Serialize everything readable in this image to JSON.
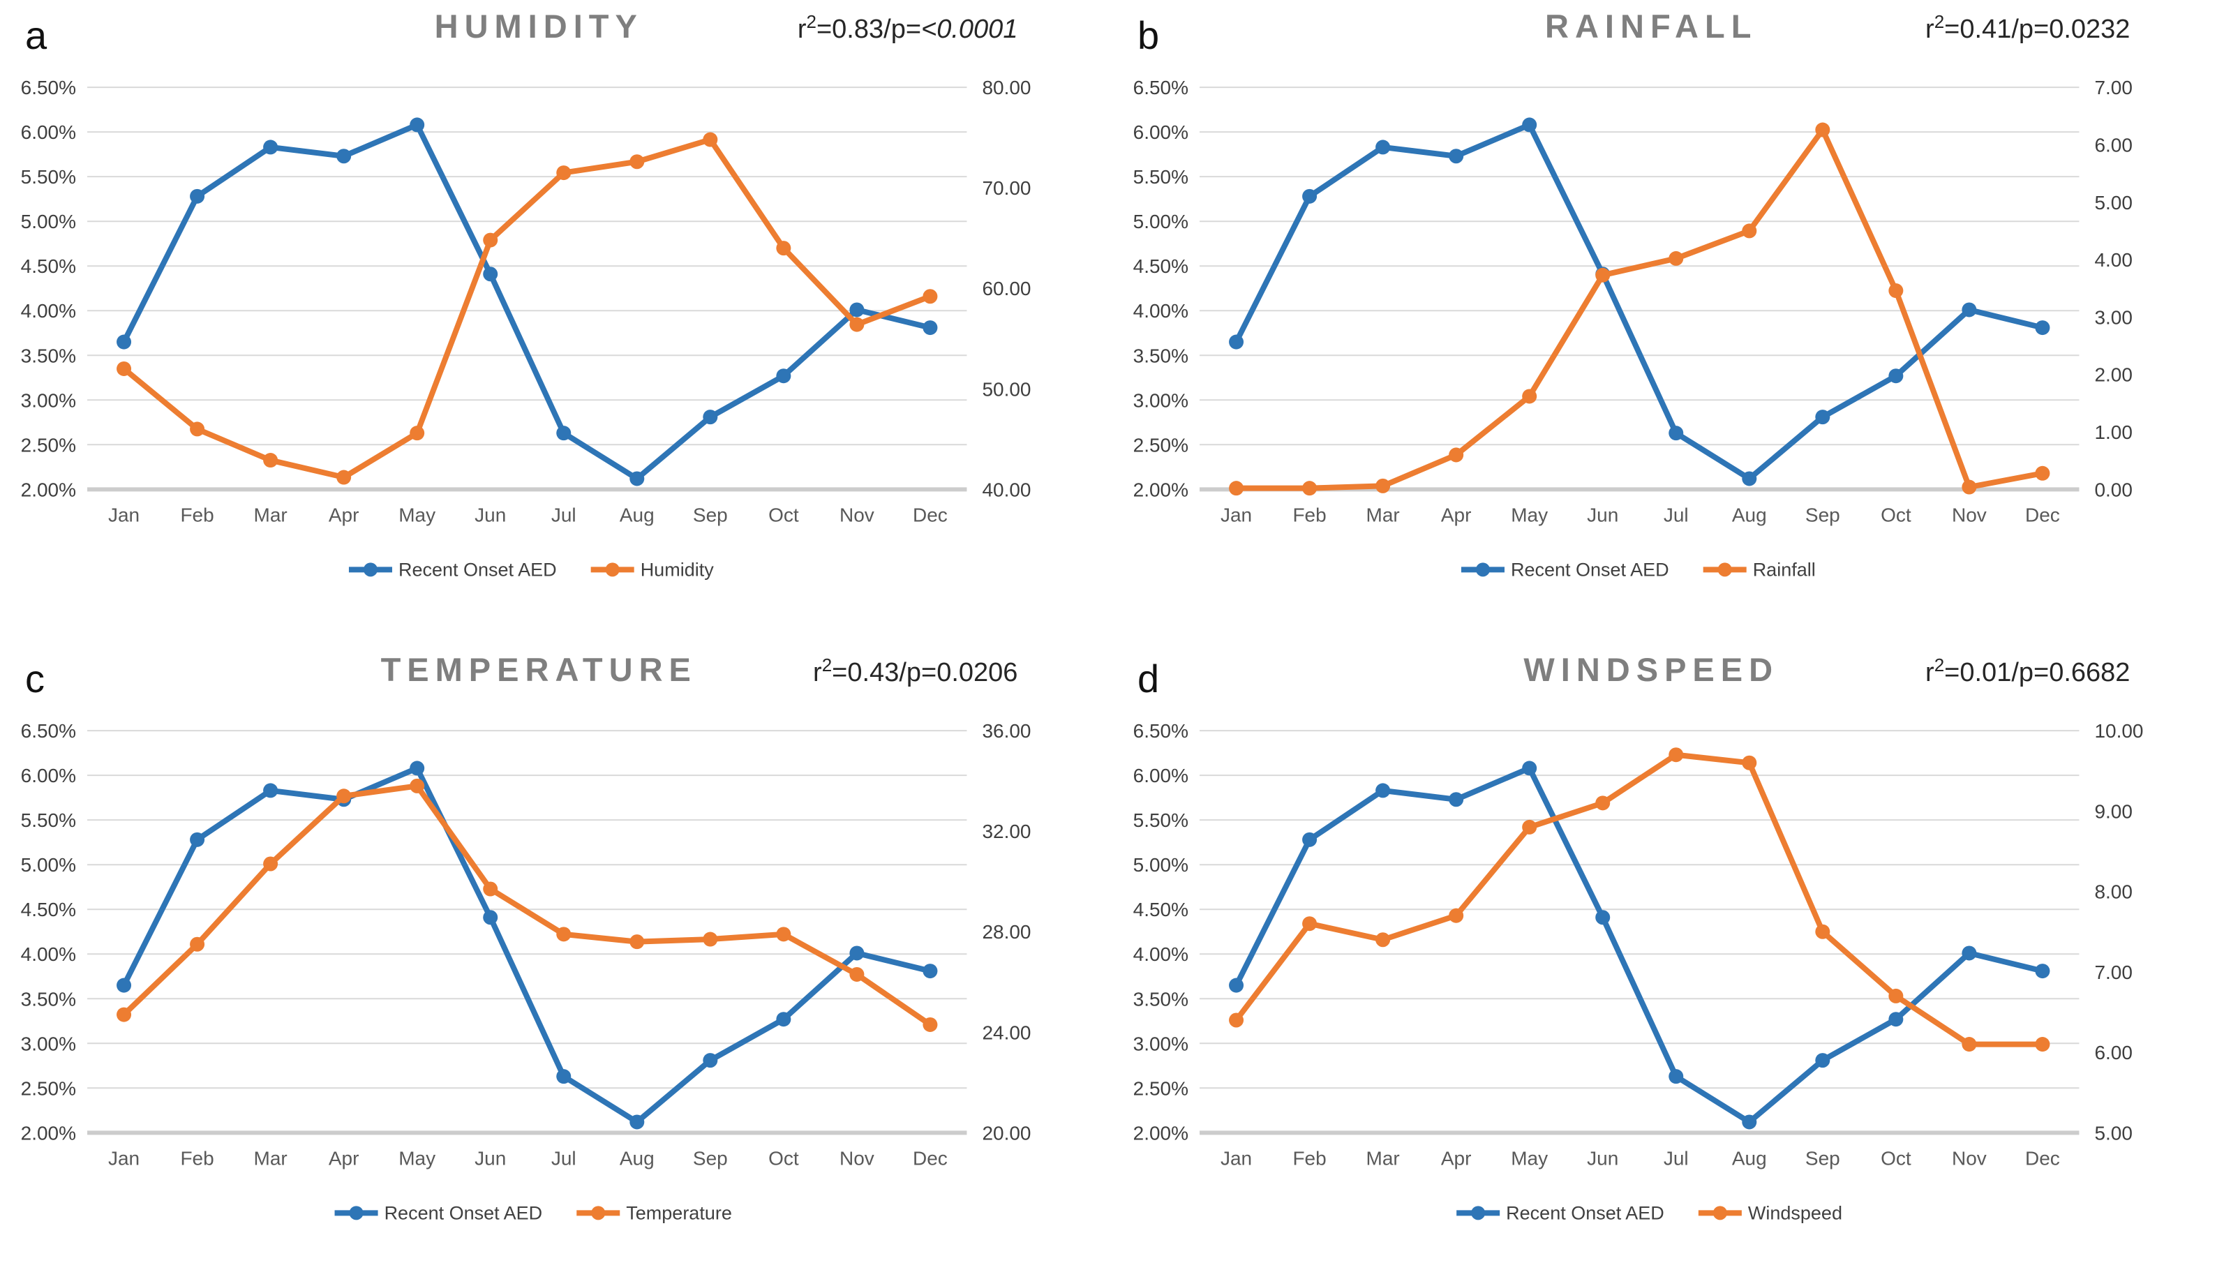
{
  "figure": {
    "background": "#FFFFFF",
    "description_visible_text_only": true
  },
  "colors": {
    "aed_line": "#2E75B6",
    "weather_line": "#ED7D31",
    "gridline": "#D9D9D9",
    "axis_line": "#CCCCCC",
    "title_text": "#7F7F7F",
    "stat_text": "#262626",
    "left_tick_text": "#3F3F3F",
    "right_tick_text": "#3F3F3F",
    "month_text": "#595959",
    "panel_letter_text": "#111111",
    "legend_text": "#404040",
    "background": "#FFFFFF"
  },
  "shared": {
    "months": [
      "Jan",
      "Feb",
      "Mar",
      "Apr",
      "May",
      "Jun",
      "Jul",
      "Aug",
      "Sep",
      "Oct",
      "Nov",
      "Dec"
    ],
    "aed_series_name": "Recent Onset AED",
    "left_axis": {
      "min": 2.0,
      "max": 6.5,
      "step": 0.5,
      "tick_values": [
        6.5,
        6.0,
        5.5,
        5.0,
        4.5,
        4.0,
        3.5,
        3.0,
        2.5,
        2.0
      ],
      "tick_labels": [
        "6.50%",
        "6.00%",
        "5.50%",
        "5.00%",
        "4.50%",
        "4.00%",
        "3.50%",
        "3.00%",
        "2.50%",
        "2.00%"
      ]
    }
  },
  "chart_data": [
    {
      "type": "line",
      "panel_letter": "a",
      "title": "HUMIDITY",
      "stat": {
        "r2": "0.83",
        "p": "<0.0001",
        "p_italic": true,
        "display": "r2=0.83/p=<0.0001"
      },
      "categories": [
        "Jan",
        "Feb",
        "Mar",
        "Apr",
        "May",
        "Jun",
        "Jul",
        "Aug",
        "Sep",
        "Oct",
        "Nov",
        "Dec"
      ],
      "left_axis_range": [
        2.0,
        6.5
      ],
      "right_axis": {
        "min": 40,
        "max": 80,
        "tick_values": [
          80,
          70,
          60,
          50,
          40
        ],
        "tick_labels": [
          "80.00",
          "70.00",
          "60.00",
          "50.00",
          "40.00"
        ]
      },
      "legend": [
        "Recent Onset AED",
        "Humidity"
      ],
      "series": [
        {
          "name": "Recent Onset AED",
          "axis": "left",
          "color_key": "aed_line",
          "values": [
            3.65,
            5.28,
            5.83,
            5.73,
            6.08,
            4.41,
            2.63,
            2.12,
            2.81,
            3.27,
            4.01,
            3.81
          ]
        },
        {
          "name": "Humidity",
          "axis": "right",
          "color_key": "weather_line",
          "values": [
            52.0,
            46.0,
            42.9,
            41.2,
            45.6,
            64.8,
            71.5,
            72.6,
            74.8,
            64.0,
            56.4,
            59.2
          ]
        }
      ]
    },
    {
      "type": "line",
      "panel_letter": "b",
      "title": "RAINFALL",
      "stat": {
        "r2": "0.41",
        "p": "0.0232",
        "p_italic": false,
        "display": "r2=0.41/p=0.0232"
      },
      "categories": [
        "Jan",
        "Feb",
        "Mar",
        "Apr",
        "May",
        "Jun",
        "Jul",
        "Aug",
        "Sep",
        "Oct",
        "Nov",
        "Dec"
      ],
      "left_axis_range": [
        2.0,
        6.5
      ],
      "right_axis": {
        "min": 0,
        "max": 7,
        "tick_values": [
          7,
          6,
          5,
          4,
          3,
          2,
          1,
          0
        ],
        "tick_labels": [
          "7.00",
          "6.00",
          "5.00",
          "4.00",
          "3.00",
          "2.00",
          "1.00",
          "0.00"
        ]
      },
      "legend": [
        "Recent Onset AED",
        "Rainfall"
      ],
      "series": [
        {
          "name": "Recent Onset AED",
          "axis": "left",
          "color_key": "aed_line",
          "values": [
            3.65,
            5.28,
            5.83,
            5.73,
            6.08,
            4.41,
            2.63,
            2.12,
            2.81,
            3.27,
            4.01,
            3.81
          ]
        },
        {
          "name": "Rainfall",
          "axis": "right",
          "color_key": "weather_line",
          "values": [
            0.02,
            0.02,
            0.06,
            0.6,
            1.62,
            3.73,
            4.02,
            4.5,
            6.26,
            3.46,
            0.04,
            0.28
          ]
        }
      ]
    },
    {
      "type": "line",
      "panel_letter": "c",
      "title": "TEMPERATURE",
      "stat": {
        "r2": "0.43",
        "p": "0.0206",
        "p_italic": false,
        "display": "r2=0.43/p=0.0206"
      },
      "categories": [
        "Jan",
        "Feb",
        "Mar",
        "Apr",
        "May",
        "Jun",
        "Jul",
        "Aug",
        "Sep",
        "Oct",
        "Nov",
        "Dec"
      ],
      "left_axis_range": [
        2.0,
        6.5
      ],
      "right_axis": {
        "min": 20,
        "max": 36,
        "tick_values": [
          36,
          32,
          28,
          24,
          20
        ],
        "tick_labels": [
          "36.00",
          "32.00",
          "28.00",
          "24.00",
          "20.00"
        ]
      },
      "legend": [
        "Recent Onset AED",
        "Temperature"
      ],
      "series": [
        {
          "name": "Recent Onset AED",
          "axis": "left",
          "color_key": "aed_line",
          "values": [
            3.65,
            5.28,
            5.83,
            5.73,
            6.08,
            4.41,
            2.63,
            2.12,
            2.81,
            3.27,
            4.01,
            3.81
          ]
        },
        {
          "name": "Temperature",
          "axis": "right",
          "color_key": "weather_line",
          "values": [
            24.7,
            27.5,
            30.7,
            33.4,
            33.8,
            29.7,
            27.9,
            27.6,
            27.7,
            27.9,
            26.3,
            24.3
          ]
        }
      ]
    },
    {
      "type": "line",
      "panel_letter": "d",
      "title": "WINDSPEED",
      "stat": {
        "r2": "0.01",
        "p": "0.6682",
        "p_italic": false,
        "display": "r2=0.01/p=0.6682"
      },
      "categories": [
        "Jan",
        "Feb",
        "Mar",
        "Apr",
        "May",
        "Jun",
        "Jul",
        "Aug",
        "Sep",
        "Oct",
        "Nov",
        "Dec"
      ],
      "left_axis_range": [
        2.0,
        6.5
      ],
      "right_axis": {
        "min": 5,
        "max": 10,
        "tick_values": [
          10,
          9,
          8,
          7,
          6,
          5
        ],
        "tick_labels": [
          "10.00",
          "9.00",
          "8.00",
          "7.00",
          "6.00",
          "5.00"
        ]
      },
      "legend": [
        "Recent Onset AED",
        "Windspeed"
      ],
      "series": [
        {
          "name": "Recent Onset AED",
          "axis": "left",
          "color_key": "aed_line",
          "values": [
            3.65,
            5.28,
            5.83,
            5.73,
            6.08,
            4.41,
            2.63,
            2.12,
            2.81,
            3.27,
            4.01,
            3.81
          ]
        },
        {
          "name": "Windspeed",
          "axis": "right",
          "color_key": "weather_line",
          "values": [
            6.4,
            7.6,
            7.4,
            7.7,
            8.8,
            9.1,
            9.7,
            9.6,
            7.5,
            6.7,
            6.1,
            6.1
          ]
        }
      ]
    }
  ]
}
